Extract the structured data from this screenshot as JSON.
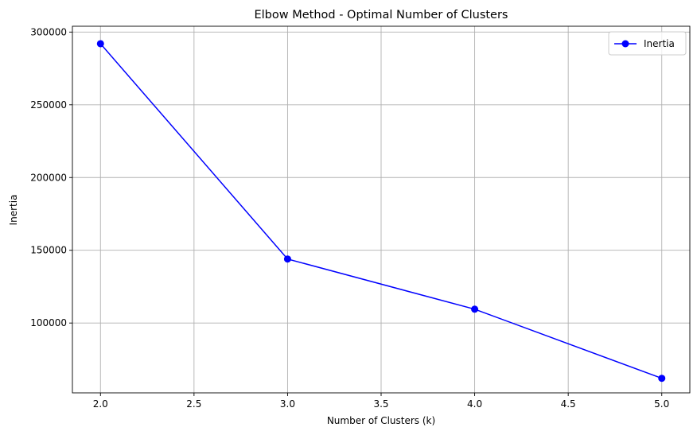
{
  "chart_data": {
    "type": "line",
    "title": "Elbow Method - Optimal Number of Clusters",
    "xlabel": "Number of Clusters (k)",
    "ylabel": "Inertia",
    "xlim": [
      1.85,
      5.15
    ],
    "ylim": [
      52000,
      304000
    ],
    "xticks": [
      2.0,
      2.5,
      3.0,
      3.5,
      4.0,
      4.5,
      5.0
    ],
    "xtick_labels": [
      "2.0",
      "2.5",
      "3.0",
      "3.5",
      "4.0",
      "4.5",
      "5.0"
    ],
    "yticks": [
      100000,
      150000,
      200000,
      250000,
      300000
    ],
    "ytick_labels": [
      "100000",
      "150000",
      "200000",
      "250000",
      "300000"
    ],
    "grid": true,
    "legend": "top-right",
    "series": [
      {
        "name": "Inertia",
        "color": "#0000ff",
        "marker": "circle",
        "x": [
          2,
          3,
          4,
          5
        ],
        "y": [
          292000,
          144000,
          109500,
          62000
        ]
      }
    ]
  }
}
